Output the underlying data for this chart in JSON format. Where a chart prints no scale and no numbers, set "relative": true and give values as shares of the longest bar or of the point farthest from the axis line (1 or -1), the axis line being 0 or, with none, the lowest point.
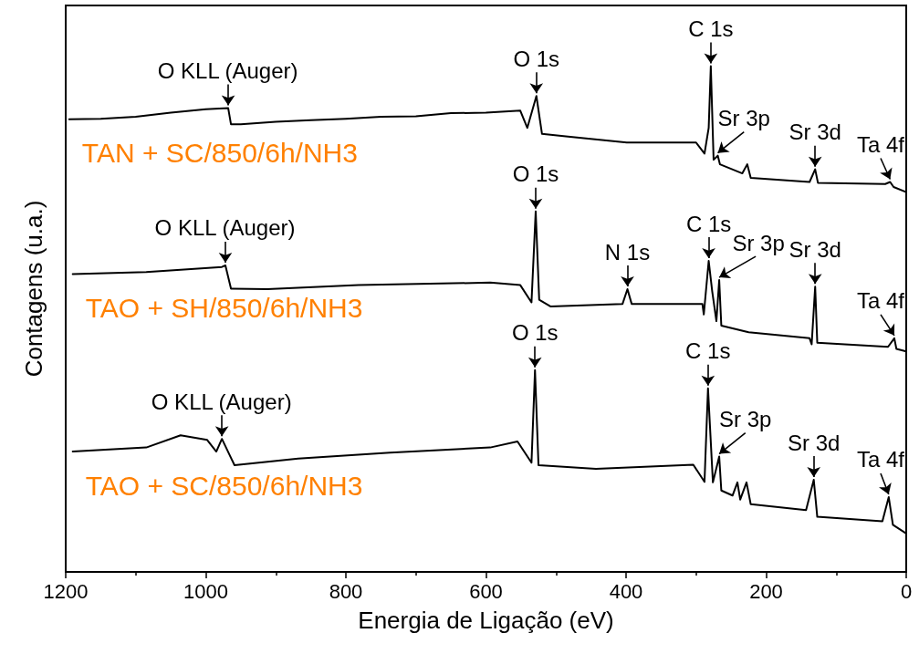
{
  "chart_data": {
    "type": "line",
    "relative": true,
    "xlabel": "Energia de Ligação (eV)",
    "ylabel": "Contagens (u.a.)",
    "xlim": [
      1200,
      0
    ],
    "xticks": [
      0,
      200,
      400,
      600,
      800,
      1000,
      1200
    ],
    "marker": "none",
    "line_style": "solid",
    "legend": "left",
    "series": [
      {
        "name": "TAN + SC/850/6h/NH3",
        "color": "#000000",
        "x": [
          1195,
          1150,
          1100,
          1050,
          1000,
          968,
          964,
          950,
          900,
          850,
          800,
          750,
          700,
          650,
          600,
          551,
          541,
          528,
          520,
          486,
          399,
          300,
          288,
          282,
          279,
          275,
          269,
          266,
          234,
          227,
          222,
          138,
          130,
          126,
          30,
          23,
          18,
          0
        ],
        "values": [
          0.895,
          0.896,
          0.9,
          0.908,
          0.915,
          0.917,
          0.885,
          0.885,
          0.89,
          0.893,
          0.896,
          0.9,
          0.901,
          0.907,
          0.908,
          0.912,
          0.878,
          0.941,
          0.866,
          0.861,
          0.849,
          0.849,
          0.827,
          0.878,
          1.0,
          0.815,
          0.823,
          0.806,
          0.788,
          0.806,
          0.779,
          0.771,
          0.796,
          0.769,
          0.767,
          0.771,
          0.761,
          0.751
        ]
      },
      {
        "name": "TAO + SH/850/6h/NH3",
        "color": "#000000",
        "x": [
          1190,
          1085,
          977,
          972,
          964,
          912,
          782,
          594,
          551,
          535,
          529,
          524,
          508,
          405,
          398,
          392,
          291,
          289,
          282,
          277,
          271,
          267,
          264,
          225,
          138,
          135,
          130,
          127,
          26,
          17,
          14,
          0
        ],
        "values": [
          0.589,
          0.593,
          0.603,
          0.606,
          0.56,
          0.559,
          0.567,
          0.572,
          0.567,
          0.533,
          0.713,
          0.538,
          0.525,
          0.53,
          0.559,
          0.53,
          0.53,
          0.509,
          0.615,
          0.555,
          0.496,
          0.577,
          0.487,
          0.474,
          0.462,
          0.45,
          0.564,
          0.453,
          0.445,
          0.462,
          0.441,
          0.436
        ]
      },
      {
        "name": "TAO + SC/850/6h/NH3",
        "color": "#000000",
        "x": [
          1190,
          1085,
          1036,
          998,
          985,
          977,
          959,
          868,
          737,
          594,
          555,
          535,
          530,
          525,
          443,
          304,
          288,
          283,
          276,
          267,
          264,
          248,
          241,
          237,
          228,
          222,
          143,
          132,
          127,
          34,
          25,
          19,
          0
        ],
        "values": [
          0.238,
          0.246,
          0.27,
          0.261,
          0.238,
          0.263,
          0.211,
          0.224,
          0.236,
          0.246,
          0.258,
          0.216,
          0.399,
          0.211,
          0.204,
          0.212,
          0.178,
          0.363,
          0.177,
          0.228,
          0.161,
          0.151,
          0.177,
          0.143,
          0.177,
          0.134,
          0.122,
          0.182,
          0.109,
          0.1,
          0.148,
          0.093,
          0.076
        ]
      }
    ],
    "annotations": [
      {
        "text": "O KLL (Auger)",
        "x": 968,
        "y": 0.917
      },
      {
        "text": "O 1s",
        "x": 528,
        "y": 0.941
      },
      {
        "text": "C 1s",
        "x": 279,
        "y": 1.0
      },
      {
        "text": "Sr 3p",
        "x": 269,
        "y": 0.823
      },
      {
        "text": "Sr 3d",
        "x": 130,
        "y": 0.796
      },
      {
        "text": "Ta 4f",
        "x": 23,
        "y": 0.771
      },
      {
        "text": "O KLL (Auger)",
        "x": 972,
        "y": 0.606
      },
      {
        "text": "O 1s",
        "x": 529,
        "y": 0.713
      },
      {
        "text": "N 1s",
        "x": 398,
        "y": 0.559
      },
      {
        "text": "C 1s",
        "x": 282,
        "y": 0.615
      },
      {
        "text": "Sr 3p",
        "x": 267,
        "y": 0.577
      },
      {
        "text": "Sr 3d",
        "x": 130,
        "y": 0.564
      },
      {
        "text": "Ta 4f",
        "x": 17,
        "y": 0.462
      },
      {
        "text": "O KLL (Auger)",
        "x": 977,
        "y": 0.263
      },
      {
        "text": "O 1s",
        "x": 530,
        "y": 0.399
      },
      {
        "text": "C 1s",
        "x": 283,
        "y": 0.363
      },
      {
        "text": "Sr 3p",
        "x": 267,
        "y": 0.228
      },
      {
        "text": "Sr 3d",
        "x": 132,
        "y": 0.182
      },
      {
        "text": "Ta 4f",
        "x": 25,
        "y": 0.148
      }
    ]
  }
}
